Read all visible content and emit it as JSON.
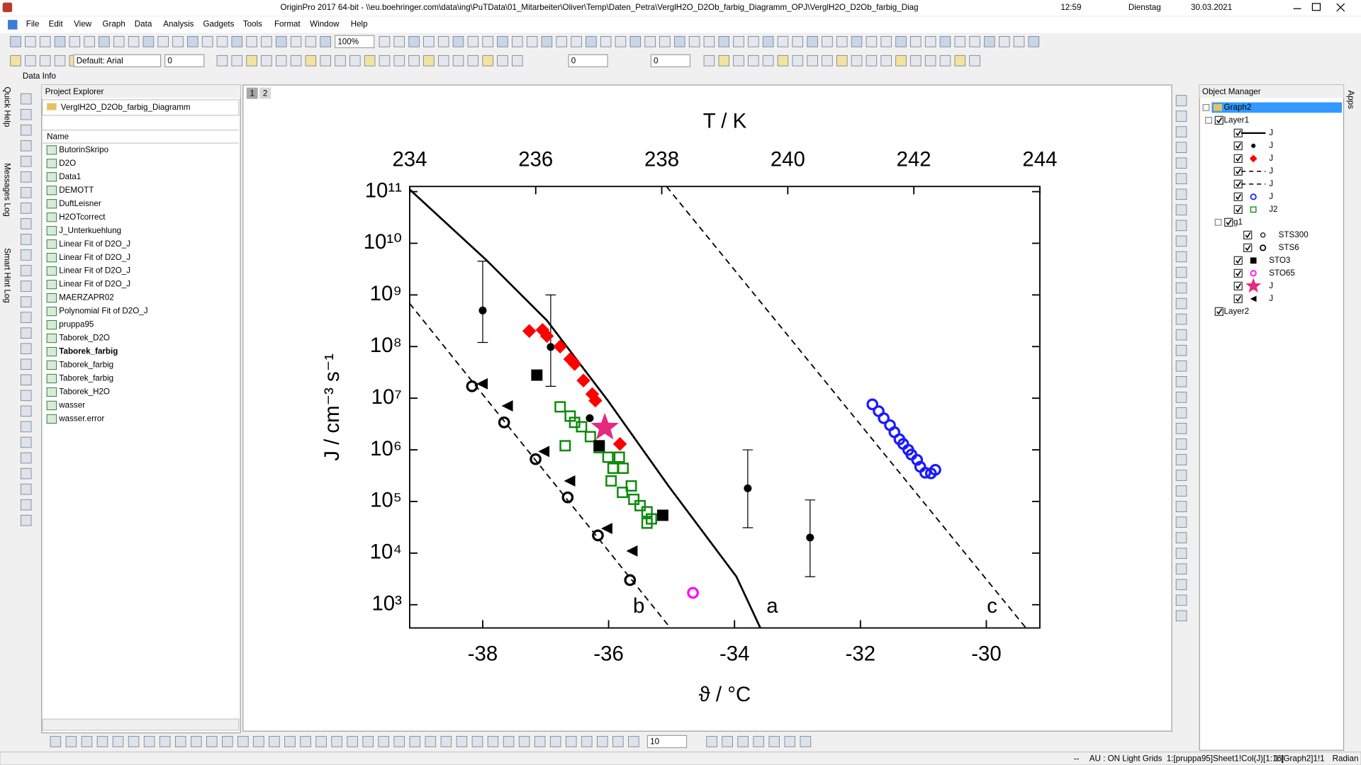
{
  "window": {
    "title": "OriginPro 2017 64-bit - \\\\eu.boehringer.com\\data\\ing\\PuTData\\01_Mitarbeiter\\Oliver\\Temp\\Daten_Petra\\VerglH2O_D2Ob_farbig_Diagramm_OPJ\\VerglH2O_D2Ob_farbig_Diag",
    "clock": [
      "12:59",
      "Dienstag",
      "30.03.2021"
    ]
  },
  "menu": [
    "File",
    "Edit",
    "View",
    "Graph",
    "Data",
    "Analysis",
    "Gadgets",
    "Tools",
    "Format",
    "Window",
    "Help"
  ],
  "toolbar": {
    "zoom": "100%",
    "font": "Default: Arial",
    "font_size": "0",
    "line_width": "0",
    "fill_size": "0",
    "bottom_size": "10",
    "tooltip": "Data Info"
  },
  "side_tabs": [
    "Quick Help",
    "Messages Log",
    "Smart Hint Log"
  ],
  "right_tab": "Apps",
  "project_explorer": {
    "title": "Project Explorer",
    "folder": "VerglH2O_D2Ob_farbig_Diagramm",
    "column": "Name",
    "items": [
      "ButorinSkripo",
      "D2O",
      "Data1",
      "DEMOTT",
      "DuftLeisner",
      "H2OTcorrect",
      "J_Unterkuehlung",
      "Linear Fit of D2O_J",
      "Linear Fit of D2O_J",
      "Linear Fit of D2O_J",
      "Linear Fit of D2O_J",
      "MAERZAPR02",
      "Polynomial Fit of D2O_J",
      "pruppa95",
      "Taborek_D2O",
      "Taborek_farbig",
      "Taborek_farbig",
      "Taborek_farbig",
      "Taborek_H2O",
      "wasser",
      "wasser.error"
    ]
  },
  "page_tabs": [
    "1",
    "2"
  ],
  "object_manager": {
    "title": "Object Manager",
    "nodes": [
      "Graph2",
      "Layer1",
      "g1",
      "STS300",
      "Layer2"
    ]
  },
  "status_bar": [
    "--",
    "AU : ON",
    "Light Grids",
    "1:[pruppa95]Sheet1!Col(J)[1:16]",
    "1:[Graph2]1!1",
    "Radian"
  ],
  "chart_data": {
    "type": "scatter",
    "xlabel": "ϑ / °C",
    "x2label": "T / K",
    "ylabel": "J / cm⁻³ s⁻¹",
    "xlim": [
      -39.16,
      -29.15
    ],
    "xticks": [
      -38,
      -36,
      -34,
      -32,
      -30
    ],
    "x2lim": [
      234,
      244
    ],
    "x2ticks": [
      234,
      236,
      238,
      240,
      242,
      244
    ],
    "ylim": [
      355,
      126000000000.0
    ],
    "ylog": true,
    "yticks": [
      {
        "value": 1000,
        "label": "10³"
      },
      {
        "value": 10000,
        "label": "10⁴"
      },
      {
        "value": 100000,
        "label": "10⁵"
      },
      {
        "value": 1000000,
        "label": "10⁶"
      },
      {
        "value": 10000000,
        "label": "10⁷"
      },
      {
        "value": 100000000,
        "label": "10⁸"
      },
      {
        "value": 1000000000,
        "label": "10⁹"
      },
      {
        "value": 10000000000,
        "label": "10¹⁰"
      },
      {
        "value": 100000000000,
        "label": "10¹¹"
      }
    ],
    "series": [
      {
        "name": "J",
        "color": "#000000",
        "line": "solid",
        "label": "a",
        "x": [
          -39.16,
          -37.94,
          -36.98,
          -36.01,
          -35.05,
          -33.97,
          -33.59
        ],
        "values": [
          110000000000.0,
          4700000000.0,
          320000000.0,
          8900000.0,
          200000.0,
          3500.0,
          355
        ]
      },
      {
        "name": "J",
        "color": "#000000",
        "marker": "dot",
        "x": [
          -38.0,
          -36.92,
          -36.3,
          -33.79,
          -32.8
        ],
        "values": [
          500000000.0,
          98000000.0,
          4100000.0,
          180000.0,
          20000.0
        ],
        "err_low": [
          120000000.0,
          17000000.0,
          null,
          31000.0,
          3500.0
        ],
        "err_high": [
          4500000000.0,
          1000000000.0,
          null,
          1000000.0,
          107000.0
        ]
      },
      {
        "name": "J",
        "color": "#ff0000",
        "marker": "diamond",
        "x": [
          -37.26,
          -37.05,
          -36.98,
          -36.77,
          -36.61,
          -36.54,
          -36.4,
          -36.26,
          -36.21,
          -35.82
        ],
        "values": [
          200000000.0,
          210000000.0,
          160000000.0,
          100000000.0,
          57000000.0,
          46000000.0,
          22000000.0,
          12000000.0,
          9000000.0,
          1300000.0
        ]
      },
      {
        "name": "J",
        "color": "#000000",
        "line": "dashed",
        "label": "b",
        "x": [
          -39.16,
          -35.02
        ],
        "values": [
          680000000.0,
          355
        ]
      },
      {
        "name": "J",
        "color": "#000000",
        "line": "dashed",
        "label": "c",
        "x": [
          -35.08,
          -29.37
        ],
        "values": [
          126000000000.0,
          355
        ]
      },
      {
        "name": "J",
        "color": "#1a1aff",
        "marker": "circle-open",
        "x": [
          -31.81,
          -31.71,
          -31.63,
          -31.53,
          -31.46,
          -31.38,
          -31.32,
          -31.24,
          -31.19,
          -31.1,
          -31.05,
          -30.97,
          -30.88,
          -30.81
        ],
        "values": [
          7600000.0,
          5600000.0,
          4100000.0,
          3000000.0,
          2200000.0,
          1600000.0,
          1300000.0,
          1000000.0,
          810000.0,
          640000.0,
          470000.0,
          360000.0,
          350000.0,
          410000.0
        ]
      },
      {
        "name": "J2",
        "color": "#0a8a0a",
        "marker": "square-open",
        "x": [
          -36.77,
          -36.61,
          -36.54,
          -36.43,
          -36.29,
          -36.69,
          -36.15,
          -36.01,
          -35.83,
          -35.93,
          -35.77,
          -35.96,
          -35.64,
          -35.78,
          -35.6,
          -35.5,
          -35.39,
          -35.32,
          -35.39
        ],
        "values": [
          6800000.0,
          4500000.0,
          3400000.0,
          2800000.0,
          1800000.0,
          1200000.0,
          1100000.0,
          720000.0,
          720000.0,
          440000.0,
          440000.0,
          250000.0,
          200000.0,
          150000.0,
          110000.0,
          83000.0,
          63000.0,
          46000.0,
          38000.0
        ]
      },
      {
        "name": "STS6",
        "color": "#000000",
        "marker": "circle-open",
        "x": [
          -38.17,
          -37.66,
          -37.16,
          -36.65,
          -36.17,
          -35.66
        ],
        "values": [
          17000000.0,
          3400000.0,
          660000.0,
          120000.0,
          22000.0,
          3000.0
        ]
      },
      {
        "name": "STO3",
        "color": "#000000",
        "marker": "square",
        "x": [
          -37.14,
          -36.15,
          -35.14
        ],
        "values": [
          28000000.0,
          1200000.0,
          54000.0
        ]
      },
      {
        "name": "STO65",
        "color": "#ff00ff",
        "marker": "circle-open",
        "x": [
          -34.66
        ],
        "values": [
          1700.0
        ]
      },
      {
        "name": "J",
        "color": "#e6287f",
        "marker": "star",
        "x": [
          -36.06
        ],
        "values": [
          2700000.0
        ]
      },
      {
        "name": "J",
        "color": "#000000",
        "marker": "triangle-left",
        "x": [
          -38.01,
          -37.61,
          -37.03,
          -36.62,
          -36.03,
          -35.63
        ],
        "values": [
          19000000.0,
          7100000.0,
          930000.0,
          250000.0,
          30000.0,
          11000.0
        ]
      }
    ]
  }
}
